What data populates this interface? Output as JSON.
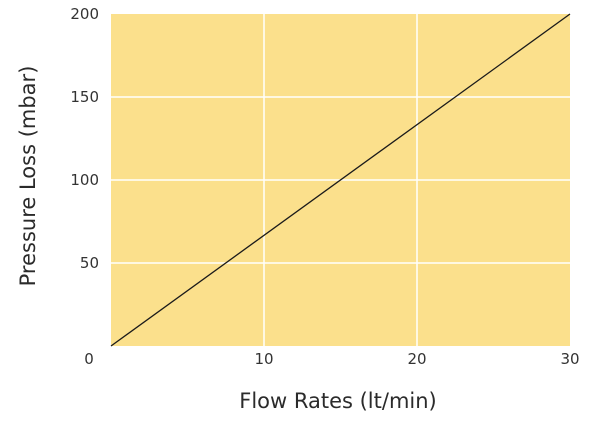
{
  "chart_data": {
    "type": "line",
    "title": "",
    "xlabel": "Flow Rates (lt/min)",
    "ylabel": "Pressure Loss (mbar)",
    "xlim": [
      0,
      30
    ],
    "ylim": [
      0,
      200
    ],
    "xticks": [
      0,
      10,
      20,
      30
    ],
    "yticks": [
      0,
      50,
      100,
      150,
      200
    ],
    "x_tick_labels": [
      "0",
      "10",
      "20",
      "30"
    ],
    "y_tick_labels": [
      "0",
      "50",
      "100",
      "150",
      "200"
    ],
    "grid": true,
    "legend": "none",
    "series": [
      {
        "x": [
          0,
          30
        ],
        "y": [
          0,
          200
        ]
      }
    ],
    "colors": {
      "plot_background": "#FBE08C",
      "grid": "#FFFFFF",
      "line": "#1A1A1A"
    }
  }
}
